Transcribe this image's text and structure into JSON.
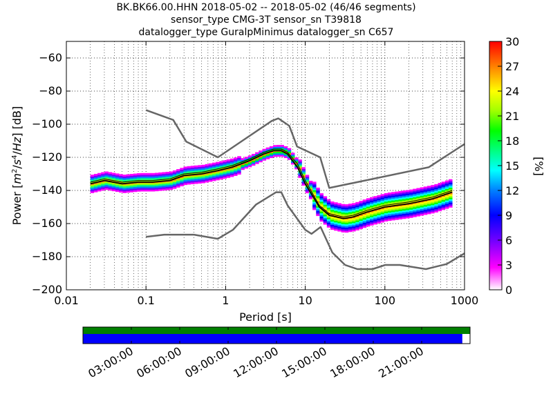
{
  "title_lines": [
    "BK.BK66.00.HHN   2018-05-02 -- 2018-05-02  (46/46 segments)",
    "sensor_type CMG-3T sensor_sn T39818",
    "datalogger_type GuralpMinimus datalogger_sn C657"
  ],
  "chart_data": {
    "type": "heatmap",
    "title": "BK.BK66.00.HHN   2018-05-02 -- 2018-05-02  (46/46 segments)",
    "subtitle": "sensor_type CMG-3T sensor_sn T39818 / datalogger_type GuralpMinimus datalogger_sn C657",
    "xlabel": "Period [s]",
    "ylabel": "Power [m²/s⁴/Hz] [dB]",
    "x_scale": "log",
    "xlim": [
      0.01,
      1000
    ],
    "ylim": [
      -200,
      -50
    ],
    "x_ticks": [
      0.01,
      0.1,
      1,
      10,
      100,
      1000
    ],
    "x_tick_labels": [
      "0.01",
      "0.1",
      "1",
      "10",
      "100",
      "1000"
    ],
    "y_ticks": [
      -200,
      -180,
      -160,
      -140,
      -120,
      -100,
      -80,
      -60
    ],
    "y_tick_labels": [
      "−200",
      "−180",
      "−160",
      "−140",
      "−120",
      "−100",
      "−80",
      "−60"
    ],
    "grid": "dotted vertical and horizontal",
    "colorbar": {
      "label": "[%]",
      "range": [
        0,
        30
      ],
      "ticks": [
        0,
        3,
        6,
        9,
        12,
        15,
        18,
        21,
        24,
        27,
        30
      ],
      "tick_labels": [
        "0",
        "3",
        "6",
        "9",
        "12",
        "15",
        "18",
        "21",
        "24",
        "27",
        "30"
      ],
      "colormap": [
        "#ffffff",
        "#ff00ff",
        "#7000ff",
        "#0000ff",
        "#0080ff",
        "#00ffff",
        "#00ff80",
        "#00ff00",
        "#a0ff00",
        "#ffff00",
        "#ff8000",
        "#ff0000"
      ]
    },
    "new_high_noise_model": {
      "x": [
        0.1,
        0.22,
        0.32,
        0.8,
        3.8,
        4.6,
        6.3,
        7.9,
        15.4,
        20,
        354.8,
        1000
      ],
      "y": [
        -91.5,
        -97.4,
        -110.5,
        -120,
        -98,
        -96.5,
        -101,
        -113.5,
        -120,
        -138.5,
        -126,
        -112
      ]
    },
    "new_low_noise_model": {
      "x": [
        0.1,
        0.17,
        0.4,
        0.8,
        1.24,
        2.4,
        4.3,
        5,
        6,
        10,
        12,
        15.6,
        21.9,
        31.6,
        45,
        70,
        101,
        154,
        328,
        600,
        1000
      ],
      "y": [
        -168,
        -166.7,
        -166.7,
        -169.2,
        -163.7,
        -148.6,
        -141.1,
        -141.1,
        -149,
        -163.8,
        -166.2,
        -162.1,
        -177.5,
        -185,
        -187.5,
        -187.5,
        -185,
        -185,
        -187.5,
        -184.4,
        -178
      ]
    },
    "mean_curve": {
      "x": [
        0.02,
        0.03,
        0.05,
        0.08,
        0.12,
        0.2,
        0.3,
        0.5,
        0.8,
        1.2,
        2,
        3,
        4,
        5,
        6,
        8,
        10,
        15,
        20,
        30,
        40,
        60,
        100,
        200,
        400,
        700
      ],
      "y": [
        -136,
        -134,
        -136,
        -135,
        -135,
        -134,
        -131,
        -130,
        -128,
        -126,
        -122,
        -118,
        -116,
        -116,
        -118,
        -126,
        -136,
        -150,
        -155,
        -157,
        -156,
        -153,
        -150,
        -148,
        -145,
        -141
      ]
    },
    "mode_curve": {
      "x": [
        0.02,
        0.03,
        0.05,
        0.08,
        0.12,
        0.2,
        0.3,
        0.5,
        0.8,
        1.2,
        2,
        3,
        4,
        5,
        6,
        8,
        10,
        15,
        20,
        30,
        40,
        60,
        100,
        200,
        400,
        700
      ],
      "y": [
        -135,
        -133,
        -135,
        -134,
        -134,
        -133,
        -130,
        -129,
        -127,
        -125,
        -121,
        -117,
        -115,
        -115,
        -117,
        -124,
        -134,
        -149,
        -154,
        -156,
        -155,
        -152,
        -149,
        -147,
        -144,
        -140
      ]
    }
  },
  "coverage": {
    "time_labels": [
      "03:00:00",
      "06:00:00",
      "09:00:00",
      "12:00:00",
      "15:00:00",
      "18:00:00",
      "21:00:00"
    ],
    "data_coverage_fraction": 0.98,
    "colors": {
      "segments": "#008000",
      "data": "#0000ff"
    }
  }
}
